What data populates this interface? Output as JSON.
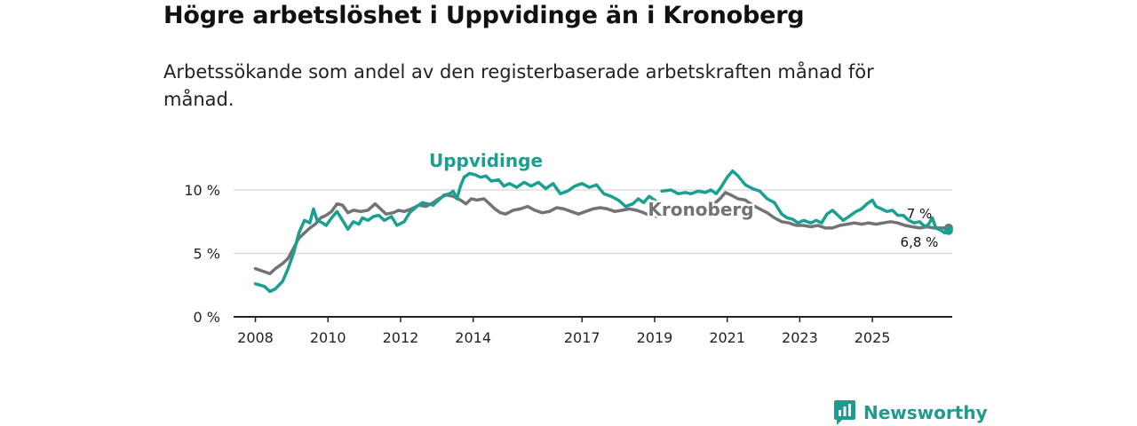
{
  "header": {
    "title": "Högre arbetslöshet i Uppvidinge än i Kronoberg",
    "subtitle": "Arbetssökande som andel av den registerbaserade arbetskraften månad för månad."
  },
  "brand": {
    "name": "Newsworthy",
    "logo_icon": "newsworthy-logo-icon"
  },
  "colors": {
    "uppvidinge": "#1aa091",
    "kronoberg": "#737276",
    "grid": "#dddddd",
    "axis": "#222222"
  },
  "chart_data": {
    "type": "line",
    "title": "Högre arbetslöshet i Uppvidinge än i Kronoberg",
    "xlabel": "",
    "ylabel": "",
    "xlim": [
      2007.4,
      2027.2
    ],
    "ylim": [
      0,
      10
    ],
    "y_ticks": [
      {
        "value": 0,
        "label": "0 %"
      },
      {
        "value": 5,
        "label": "5 %"
      },
      {
        "value": 10,
        "label": "10 %"
      }
    ],
    "x_ticks": [
      {
        "value": 2008,
        "label": "2008"
      },
      {
        "value": 2010,
        "label": "2010"
      },
      {
        "value": 2012,
        "label": "2012"
      },
      {
        "value": 2014,
        "label": "2014"
      },
      {
        "value": 2017,
        "label": "2017"
      },
      {
        "value": 2019,
        "label": "2019"
      },
      {
        "value": 2021,
        "label": "2021"
      },
      {
        "value": 2023,
        "label": "2023"
      },
      {
        "value": 2025,
        "label": "2025"
      }
    ],
    "series": [
      {
        "name": "Uppvidinge",
        "label": "Uppvidinge",
        "color": "#1aa091",
        "end_label": "6,8 %",
        "points": [
          [
            2008.0,
            2.6
          ],
          [
            2008.25,
            2.4
          ],
          [
            2008.4,
            2.0
          ],
          [
            2008.55,
            2.2
          ],
          [
            2008.75,
            2.8
          ],
          [
            2008.9,
            3.8
          ],
          [
            2009.05,
            5.0
          ],
          [
            2009.2,
            6.6
          ],
          [
            2009.35,
            7.6
          ],
          [
            2009.5,
            7.4
          ],
          [
            2009.6,
            8.5
          ],
          [
            2009.7,
            7.6
          ],
          [
            2009.85,
            7.4
          ],
          [
            2009.95,
            7.2
          ],
          [
            2010.1,
            7.8
          ],
          [
            2010.25,
            8.3
          ],
          [
            2010.4,
            7.6
          ],
          [
            2010.55,
            6.9
          ],
          [
            2010.7,
            7.5
          ],
          [
            2010.85,
            7.3
          ],
          [
            2010.95,
            7.8
          ],
          [
            2011.1,
            7.6
          ],
          [
            2011.25,
            7.9
          ],
          [
            2011.4,
            8.0
          ],
          [
            2011.55,
            7.6
          ],
          [
            2011.75,
            7.9
          ],
          [
            2011.9,
            7.2
          ],
          [
            2012.1,
            7.5
          ],
          [
            2012.25,
            8.2
          ],
          [
            2012.45,
            8.7
          ],
          [
            2012.6,
            9.0
          ],
          [
            2012.75,
            8.9
          ],
          [
            2012.9,
            8.8
          ],
          [
            2013.05,
            9.2
          ],
          [
            2013.2,
            9.6
          ],
          [
            2013.35,
            9.7
          ],
          [
            2013.45,
            9.9
          ],
          [
            2013.55,
            9.3
          ],
          [
            2013.65,
            10.3
          ],
          [
            2013.75,
            11.0
          ],
          [
            2013.9,
            11.3
          ],
          [
            2014.05,
            11.2
          ],
          [
            2014.2,
            11.0
          ],
          [
            2014.35,
            11.1
          ],
          [
            2014.5,
            10.7
          ],
          [
            2014.7,
            10.8
          ],
          [
            2014.85,
            10.3
          ],
          [
            2015.0,
            10.5
          ],
          [
            2015.2,
            10.2
          ],
          [
            2015.4,
            10.6
          ],
          [
            2015.6,
            10.3
          ],
          [
            2015.8,
            10.6
          ],
          [
            2016.0,
            10.1
          ],
          [
            2016.2,
            10.5
          ],
          [
            2016.4,
            9.7
          ],
          [
            2016.6,
            9.9
          ],
          [
            2016.8,
            10.3
          ],
          [
            2017.0,
            10.5
          ],
          [
            2017.2,
            10.2
          ],
          [
            2017.4,
            10.4
          ],
          [
            2017.6,
            9.7
          ],
          [
            2017.8,
            9.5
          ],
          [
            2018.0,
            9.2
          ],
          [
            2018.2,
            8.7
          ],
          [
            2018.4,
            8.9
          ],
          [
            2018.55,
            9.3
          ],
          [
            2018.7,
            9.0
          ],
          [
            2018.85,
            9.5
          ],
          [
            2019.05,
            9.1
          ],
          null,
          [
            2019.2,
            9.9
          ],
          [
            2019.45,
            10.0
          ],
          [
            2019.65,
            9.7
          ],
          [
            2019.85,
            9.8
          ],
          [
            2020.0,
            9.7
          ],
          [
            2020.2,
            9.9
          ],
          [
            2020.4,
            9.8
          ],
          [
            2020.55,
            10.0
          ],
          [
            2020.7,
            9.7
          ],
          [
            2020.85,
            10.3
          ],
          [
            2021.0,
            11.0
          ],
          [
            2021.15,
            11.5
          ],
          [
            2021.3,
            11.1
          ],
          [
            2021.5,
            10.4
          ],
          [
            2021.7,
            10.1
          ],
          [
            2021.9,
            9.9
          ],
          [
            2022.1,
            9.3
          ],
          [
            2022.3,
            9.0
          ],
          [
            2022.5,
            8.1
          ],
          [
            2022.65,
            7.8
          ],
          [
            2022.8,
            7.7
          ],
          [
            2022.95,
            7.4
          ],
          [
            2023.1,
            7.6
          ],
          [
            2023.3,
            7.4
          ],
          [
            2023.45,
            7.6
          ],
          [
            2023.6,
            7.4
          ],
          [
            2023.75,
            8.1
          ],
          [
            2023.9,
            8.4
          ],
          [
            2024.05,
            8.0
          ],
          [
            2024.2,
            7.6
          ],
          [
            2024.4,
            8.0
          ],
          [
            2024.55,
            8.3
          ],
          [
            2024.7,
            8.5
          ],
          [
            2024.85,
            8.9
          ],
          [
            2025.0,
            9.2
          ],
          [
            2025.1,
            8.7
          ],
          [
            2025.25,
            8.5
          ],
          [
            2025.4,
            8.3
          ],
          [
            2025.55,
            8.4
          ],
          [
            2025.7,
            8.0
          ],
          [
            2025.85,
            8.0
          ],
          [
            2026.0,
            7.6
          ],
          [
            2026.15,
            7.4
          ],
          [
            2026.3,
            7.5
          ],
          [
            2026.45,
            7.1
          ],
          [
            2026.55,
            7.3
          ],
          [
            2026.65,
            7.8
          ],
          [
            2026.75,
            7.0
          ],
          [
            2026.9,
            6.8
          ],
          [
            2027.0,
            6.6
          ],
          [
            2027.1,
            6.8
          ]
        ]
      },
      {
        "name": "Kronoberg",
        "label": "Kronoberg",
        "color": "#737276",
        "end_label": "7 %",
        "points": [
          [
            2008.0,
            3.8
          ],
          [
            2008.2,
            3.6
          ],
          [
            2008.4,
            3.4
          ],
          [
            2008.55,
            3.8
          ],
          [
            2008.75,
            4.2
          ],
          [
            2008.9,
            4.6
          ],
          [
            2009.05,
            5.4
          ],
          [
            2009.2,
            6.2
          ],
          [
            2009.35,
            6.6
          ],
          [
            2009.5,
            7.0
          ],
          [
            2009.65,
            7.3
          ],
          [
            2009.8,
            7.8
          ],
          [
            2009.95,
            8.0
          ],
          [
            2010.1,
            8.3
          ],
          [
            2010.25,
            8.9
          ],
          [
            2010.4,
            8.8
          ],
          [
            2010.55,
            8.2
          ],
          [
            2010.7,
            8.4
          ],
          [
            2010.9,
            8.3
          ],
          [
            2011.1,
            8.4
          ],
          [
            2011.3,
            8.9
          ],
          [
            2011.45,
            8.5
          ],
          [
            2011.6,
            8.1
          ],
          [
            2011.8,
            8.2
          ],
          [
            2011.95,
            8.4
          ],
          [
            2012.1,
            8.3
          ],
          [
            2012.3,
            8.5
          ],
          [
            2012.5,
            8.8
          ],
          [
            2012.7,
            8.7
          ],
          [
            2012.9,
            9.0
          ],
          [
            2013.05,
            9.3
          ],
          [
            2013.25,
            9.6
          ],
          [
            2013.45,
            9.5
          ],
          [
            2013.65,
            9.2
          ],
          [
            2013.8,
            8.9
          ],
          [
            2013.95,
            9.3
          ],
          [
            2014.1,
            9.2
          ],
          [
            2014.3,
            9.3
          ],
          [
            2014.45,
            8.9
          ],
          [
            2014.6,
            8.5
          ],
          [
            2014.75,
            8.2
          ],
          [
            2014.9,
            8.1
          ],
          [
            2015.1,
            8.4
          ],
          [
            2015.3,
            8.5
          ],
          [
            2015.5,
            8.7
          ],
          [
            2015.7,
            8.4
          ],
          [
            2015.9,
            8.2
          ],
          [
            2016.1,
            8.3
          ],
          [
            2016.3,
            8.6
          ],
          [
            2016.5,
            8.5
          ],
          [
            2016.7,
            8.3
          ],
          [
            2016.9,
            8.1
          ],
          [
            2017.1,
            8.3
          ],
          [
            2017.3,
            8.5
          ],
          [
            2017.5,
            8.6
          ],
          [
            2017.7,
            8.5
          ],
          [
            2017.9,
            8.3
          ],
          [
            2018.1,
            8.4
          ],
          [
            2018.3,
            8.5
          ],
          [
            2018.5,
            8.4
          ],
          [
            2018.7,
            8.2
          ],
          [
            2018.85,
            8.0
          ],
          [
            2019.05,
            7.9
          ],
          null,
          [
            2020.45,
            8.3
          ],
          [
            2020.6,
            8.8
          ],
          [
            2020.8,
            9.3
          ],
          [
            2020.95,
            9.8
          ],
          [
            2021.1,
            9.6
          ],
          [
            2021.3,
            9.3
          ],
          [
            2021.5,
            9.2
          ],
          [
            2021.7,
            8.8
          ],
          [
            2021.9,
            8.5
          ],
          [
            2022.1,
            8.2
          ],
          [
            2022.3,
            7.8
          ],
          [
            2022.5,
            7.5
          ],
          [
            2022.7,
            7.4
          ],
          [
            2022.9,
            7.2
          ],
          [
            2023.1,
            7.2
          ],
          [
            2023.3,
            7.1
          ],
          [
            2023.5,
            7.2
          ],
          [
            2023.7,
            7.0
          ],
          [
            2023.9,
            7.0
          ],
          [
            2024.1,
            7.2
          ],
          [
            2024.3,
            7.3
          ],
          [
            2024.5,
            7.4
          ],
          [
            2024.7,
            7.3
          ],
          [
            2024.9,
            7.4
          ],
          [
            2025.1,
            7.3
          ],
          [
            2025.3,
            7.4
          ],
          [
            2025.5,
            7.5
          ],
          [
            2025.7,
            7.4
          ],
          [
            2025.9,
            7.2
          ],
          [
            2026.1,
            7.1
          ],
          [
            2026.3,
            7.0
          ],
          [
            2026.5,
            7.1
          ],
          [
            2026.7,
            7.0
          ],
          [
            2026.9,
            7.0
          ],
          [
            2027.1,
            7.0
          ]
        ]
      }
    ]
  }
}
